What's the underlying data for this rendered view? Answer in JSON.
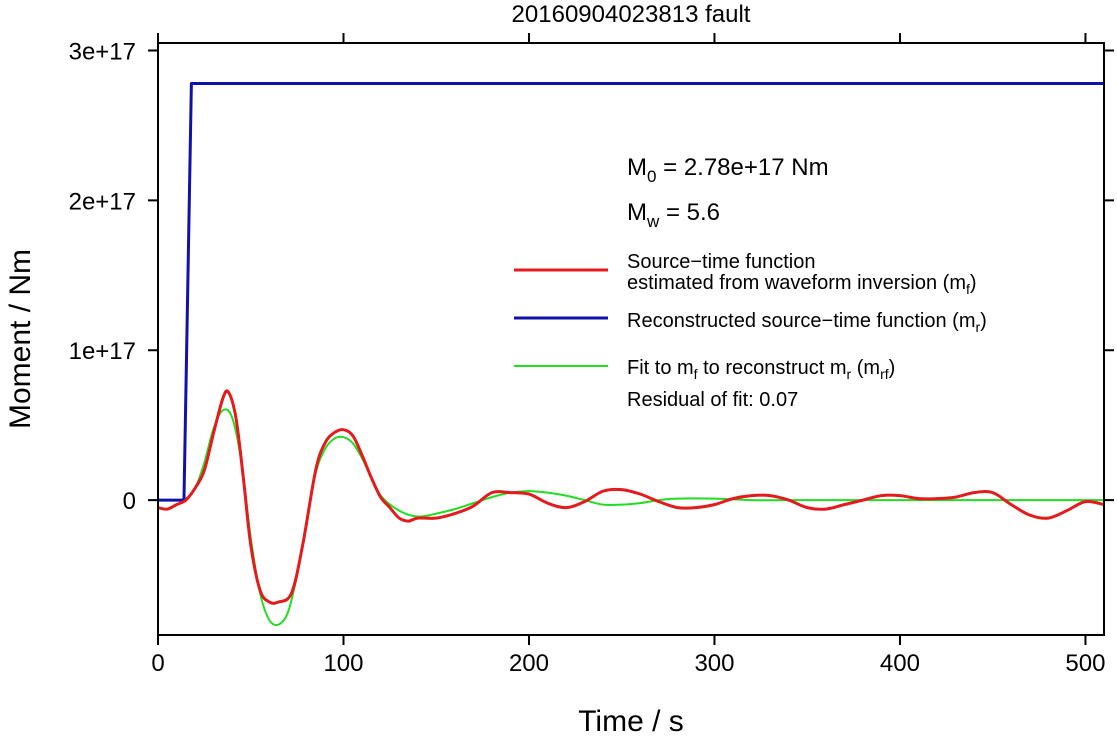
{
  "chart_data": {
    "type": "line",
    "title": "20160904023813 fault",
    "xlabel": "Time / s",
    "ylabel": "Moment / Nm",
    "xlim": [
      0,
      510
    ],
    "ylim": [
      -9e+16,
      3.05e+17
    ],
    "x_ticks": [
      0,
      100,
      200,
      300,
      400,
      500
    ],
    "x_tick_labels": [
      "0",
      "100",
      "200",
      "300",
      "400",
      "500"
    ],
    "y_ticks": [
      0,
      1e+17,
      2e+17,
      3e+17
    ],
    "y_tick_labels": [
      "0",
      "1e+17",
      "2e+17",
      "3e+17"
    ],
    "grid": false,
    "legend_position": "right",
    "annotations": {
      "m0": {
        "symbol": "M",
        "sub": "0",
        "text": " = 2.78e+17 Nm"
      },
      "mw": {
        "symbol": "M",
        "sub": "w",
        "text": " = 5.6"
      },
      "residual": "Residual of fit: 0.07"
    },
    "legend": {
      "red_line1": "Source−time function",
      "red_line2_pre": "estimated from waveform inversion (m",
      "red_line2_sub": "f",
      "red_line2_post": ")",
      "blue_pre": "Reconstructed source−time function (m",
      "blue_sub": "r",
      "blue_post": ")",
      "green_a": "Fit to m",
      "green_a_sub": "f",
      "green_b": " to reconstruct m",
      "green_b_sub": "r",
      "green_c": " (m",
      "green_c_sub": "rf",
      "green_d": ")"
    },
    "series": [
      {
        "key": "mf",
        "color": "#e41a1c",
        "x": [
          0,
          5,
          10,
          15,
          20,
          25,
          30,
          35,
          38,
          42,
          46,
          50,
          55,
          60,
          65,
          72,
          78,
          85,
          90,
          95,
          100,
          105,
          110,
          115,
          120,
          125,
          130,
          135,
          140,
          150,
          160,
          170,
          180,
          190,
          200,
          210,
          220,
          230,
          240,
          250,
          260,
          270,
          280,
          290,
          300,
          310,
          320,
          330,
          340,
          350,
          360,
          370,
          380,
          390,
          400,
          410,
          420,
          430,
          440,
          450,
          460,
          470,
          480,
          490,
          500,
          510
        ],
        "y": [
          -5000000000000000.0,
          -6000000000000000.0,
          -3000000000000000.0,
          0.0,
          8000000000000000.0,
          2e+16,
          4.5e+16,
          6.8e+16,
          7.2e+16,
          5.5e+16,
          1.5e+16,
          -3e+16,
          -6e+16,
          -6.8e+16,
          -6.8e+16,
          -6.2e+16,
          -3e+16,
          2e+16,
          3.8e+16,
          4.5e+16,
          4.7e+16,
          4.3e+16,
          3e+16,
          1.5e+16,
          2000000000000000.0,
          -5000000000000000.0,
          -1.2e+16,
          -1.4e+16,
          -1.2e+16,
          -1.2e+16,
          -9000000000000000.0,
          -4000000000000000.0,
          5000000000000000.0,
          5000000000000000.0,
          4000000000000000.0,
          -2000000000000000.0,
          -5000000000000000.0,
          -1000000000000000.0,
          6000000000000000.0,
          7000000000000000.0,
          4000000000000000.0,
          -1000000000000000.0,
          -5000000000000000.0,
          -5000000000000000.0,
          -3000000000000000.0,
          1000000000000000.0,
          3000000000000000.0,
          3000000000000000.0,
          0.0,
          -5000000000000000.0,
          -6000000000000000.0,
          -3000000000000000.0,
          0.0,
          3000000000000000.0,
          3000000000000000.0,
          1000000000000000.0,
          1000000000000000.0,
          2000000000000000.0,
          5000000000000000.0,
          5000000000000000.0,
          -3000000000000000.0,
          -1e+16,
          -1.2e+16,
          -7000000000000000.0,
          -1000000000000000.0,
          -3000000000000000.0
        ]
      },
      {
        "key": "mr",
        "color": "#1111aa",
        "x": [
          0,
          14,
          18,
          510
        ],
        "y": [
          0,
          0,
          2.78e+17,
          2.78e+17
        ]
      },
      {
        "key": "mrf",
        "color": "#22dd22",
        "x": [
          0,
          10,
          15,
          20,
          25,
          30,
          35,
          40,
          45,
          50,
          55,
          60,
          65,
          70,
          75,
          80,
          85,
          90,
          95,
          100,
          105,
          110,
          115,
          120,
          130,
          140,
          150,
          160,
          170,
          180,
          190,
          200,
          210,
          220,
          230,
          240,
          250,
          260,
          270,
          280,
          300,
          320,
          350,
          400,
          450,
          510
        ],
        "y": [
          0,
          0,
          1000000000000000.0,
          8000000000000000.0,
          2.5e+16,
          4.8e+16,
          6e+16,
          5.5e+16,
          2.5e+16,
          -2.5e+16,
          -6.2e+16,
          -8e+16,
          -8.3e+16,
          -7.5e+16,
          -5e+16,
          -1.5e+16,
          1.8e+16,
          3.4e+16,
          4.1e+16,
          4.2e+16,
          3.8e+16,
          2.8e+16,
          1.5e+16,
          3000000000000000.0,
          -7000000000000000.0,
          -1.1e+16,
          -9000000000000000.0,
          -6000000000000000.0,
          -2000000000000000.0,
          2000000000000000.0,
          5000000000000000.0,
          6000000000000000.0,
          5000000000000000.0,
          3000000000000000.0,
          0.0,
          -3000000000000000.0,
          -3000000000000000.0,
          -2000000000000000.0,
          0.0,
          1000000000000000.0,
          1000000000000000.0,
          0.0,
          0.0,
          0.0,
          0.0,
          0.0
        ]
      }
    ]
  }
}
